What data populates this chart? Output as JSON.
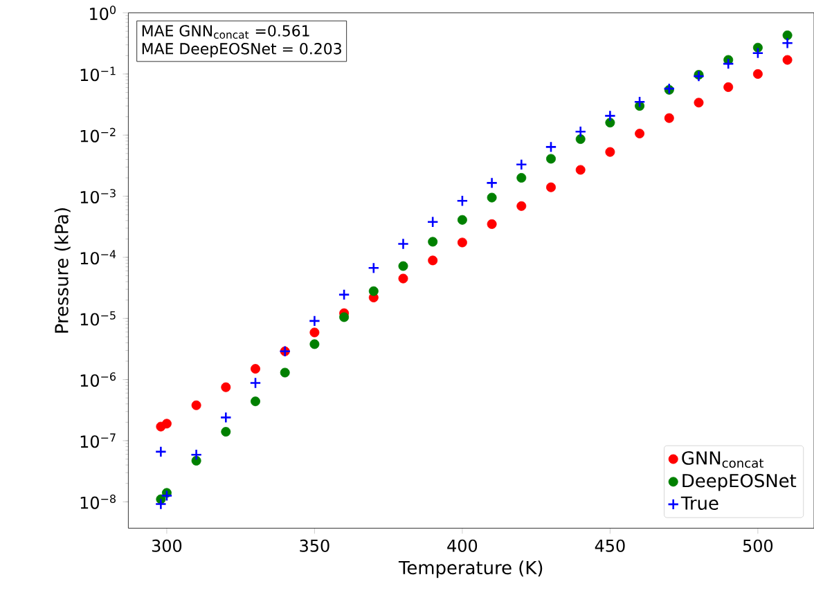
{
  "chart_data": {
    "type": "scatter",
    "xlabel": "Temperature (K)",
    "ylabel": "Pressure (kPa)",
    "log": "y",
    "legend": "bottom right",
    "xlim": [
      287,
      519
    ],
    "ylim": [
      3.7e-09,
      1
    ],
    "xticks": [
      300,
      350,
      400,
      450,
      500
    ],
    "yticks": [
      {
        "value": 1e-08,
        "label": "10$^{−8}$"
      },
      {
        "value": 1e-07,
        "label": "10$^{−7}$"
      },
      {
        "value": 1e-06,
        "label": "10$^{−6}$"
      },
      {
        "value": 1e-05,
        "label": "10$^{−5}$"
      },
      {
        "value": 0.0001,
        "label": "10$^{−4}$"
      },
      {
        "value": 0.001,
        "label": "10$^{−3}$"
      },
      {
        "value": 0.01,
        "label": "10$^{−2}$"
      },
      {
        "value": 0.1,
        "label": "10$^{−1}$"
      },
      {
        "value": 1,
        "label": "10$^{0}$"
      }
    ],
    "annotations": [
      "MAE GNN$_{concat}$ =0.561",
      "MAE DeepEOSNet = 0.203"
    ],
    "series": [
      {
        "name": "GNN$_{concat}$",
        "color": "#ff0000",
        "marker": "circle",
        "x": [
          298,
          300,
          310,
          320,
          330,
          340,
          350,
          360,
          370,
          380,
          390,
          400,
          410,
          420,
          430,
          440,
          450,
          460,
          470,
          480,
          490,
          500,
          510
        ],
        "values": [
          1.7e-07,
          1.9e-07,
          3.8e-07,
          7.5e-07,
          1.5e-06,
          2.9e-06,
          5.9e-06,
          1.22e-05,
          2.2e-05,
          4.5e-05,
          8.9e-05,
          0.000175,
          0.00035,
          0.00069,
          0.0014,
          0.0027,
          0.0053,
          0.0106,
          0.019,
          0.034,
          0.061,
          0.1,
          0.17
        ]
      },
      {
        "name": "DeepEOSNet",
        "color": "#008000",
        "marker": "circle",
        "x": [
          298,
          300,
          310,
          320,
          330,
          340,
          350,
          360,
          370,
          380,
          390,
          400,
          410,
          420,
          430,
          440,
          450,
          460,
          470,
          480,
          490,
          500,
          510
        ],
        "values": [
          1.1e-08,
          1.4e-08,
          4.7e-08,
          1.4e-07,
          4.4e-07,
          1.3e-06,
          3.8e-06,
          1.05e-05,
          2.8e-05,
          7.2e-05,
          0.00018,
          0.00041,
          0.00095,
          0.002,
          0.0041,
          0.0086,
          0.016,
          0.03,
          0.055,
          0.097,
          0.17,
          0.27,
          0.43
        ]
      },
      {
        "name": "True",
        "color": "#0000ff",
        "marker": "cross",
        "x": [
          298,
          298,
          300,
          310,
          320,
          330,
          340,
          350,
          360,
          370,
          380,
          390,
          400,
          410,
          420,
          430,
          440,
          450,
          460,
          470,
          480,
          490,
          500,
          510
        ],
        "values": [
          6.6e-08,
          9.2e-09,
          1.26e-08,
          5.9e-08,
          2.4e-07,
          8.8e-07,
          2.9e-06,
          9.1e-06,
          2.45e-05,
          6.7e-05,
          0.000166,
          0.00038,
          0.00084,
          0.00165,
          0.0033,
          0.0064,
          0.0114,
          0.0207,
          0.035,
          0.0575,
          0.092,
          0.147,
          0.22,
          0.32
        ]
      }
    ]
  }
}
